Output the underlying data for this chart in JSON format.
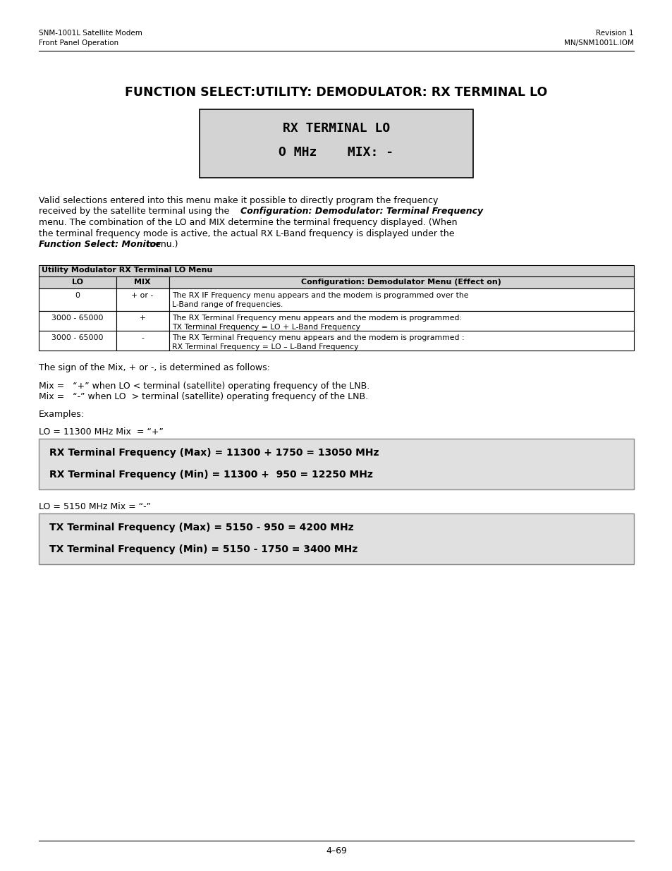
{
  "header_left_line1": "SNM-1001L Satellite Modem",
  "header_left_line2": "Front Panel Operation",
  "header_right_line1": "Revision 1",
  "header_right_line2": "MN/SNM1001L.IOM",
  "main_title": "FUNCTION SELECT:UTILITY: DEMODULATOR: RX TERMINAL LO",
  "terminal_display_line1": "RX TERMINAL LO",
  "terminal_display_line2": "O MHz    MIX: -",
  "table_title": "Utility Modulator RX Terminal LO Menu",
  "table_headers": [
    "LO",
    "MIX",
    "Configuration: Demodulator Menu (Effect on)"
  ],
  "table_rows": [
    [
      "0",
      "+ or -",
      "The RX IF Frequency menu appears and the modem is programmed over the\nL-Band range of frequencies."
    ],
    [
      "3000 - 65000",
      "+",
      "The RX Terminal Frequency menu appears and the modem is programmed:\nTX Terminal Frequency = LO + L-Band Frequency"
    ],
    [
      "3000 - 65000",
      "-",
      "The RX Terminal Frequency menu appears and the modem is programmed :\nRX Terminal Frequency = LO – L-Band Frequency"
    ]
  ],
  "sign_text": "The sign of the Mix, + or -, is determined as follows:",
  "mix_plus": "Mix =   “+” when LO < terminal (satellite) operating frequency of the LNB.",
  "mix_minus": "Mix =   “-” when LO  > terminal (satellite) operating frequency of the LNB.",
  "examples_label": "Examples:",
  "lo_example1": "LO = 11300 MHz Mix  = “+”",
  "box1_line1": "RX Terminal Frequency (Max) = 11300 + 1750 = 13050 MHz",
  "box1_line2": "RX Terminal Frequency (Min) = 11300 +  950 = 12250 MHz",
  "lo_example2": "LO = 5150 MHz Mix = “-”",
  "box2_line1": "TX Terminal Frequency (Max) = 5150 - 950 = 4200 MHz",
  "box2_line2": "TX Terminal Frequency (Min) = 5150 - 1750 = 3400 MHz",
  "footer_text": "4–69",
  "bg_color": "#ffffff",
  "terminal_bg": "#d3d3d3",
  "box_bg": "#e0e0e0",
  "table_header_bg": "#d3d3d3",
  "table_title_bg": "#d3d3d3"
}
